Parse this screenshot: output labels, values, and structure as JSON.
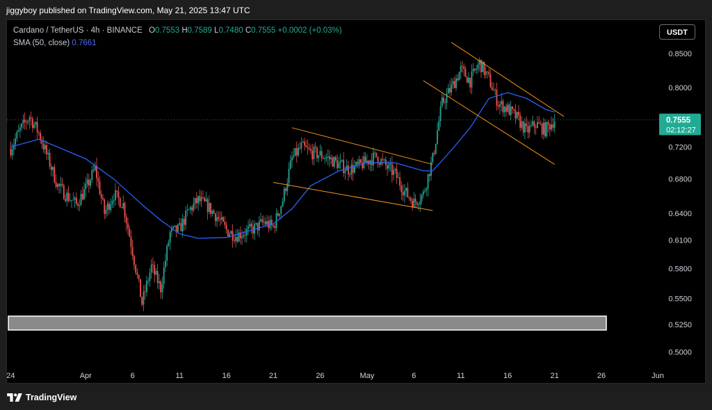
{
  "header": {
    "published_text": "jiggyboy published on TradingView.com, May 21, 2025 13:47 UTC"
  },
  "legend": {
    "symbol": "Cardano / TetherUS · 4h · BINANCE",
    "open_label": "O",
    "open": "0.7553",
    "high_label": "H",
    "high": "0.7589",
    "low_label": "L",
    "low": "0.7480",
    "close_label": "C",
    "close": "0.7555",
    "change": "+0.0002 (+0.03%)",
    "sma_label": "SMA (50, close)",
    "sma_value": "0.7661"
  },
  "toolbar": {
    "currency_button": "USDT"
  },
  "footer": {
    "brand": "TradingView"
  },
  "colors": {
    "up": "#26a69a",
    "down": "#ef5350",
    "sma": "#2962ff",
    "channel": "#f7931a",
    "price_tag": "#22ab94",
    "support_zone": "#8a8a8a"
  },
  "chart_data": {
    "type": "candlestick",
    "symbol": "Cardano / TetherUS",
    "interval": "4h",
    "exchange": "BINANCE",
    "y_scale": "log",
    "ylim": [
      0.49,
      0.88
    ],
    "y_ticks": [
      "0.8500",
      "0.8000",
      "0.7200",
      "0.6800",
      "0.6400",
      "0.6100",
      "0.5800",
      "0.5500",
      "0.5250",
      "0.5000"
    ],
    "x_range": [
      "2025-03-24",
      "2025-06-01"
    ],
    "x_ticks": [
      {
        "label": "24",
        "date": "2025-03-24"
      },
      {
        "label": "Apr",
        "date": "2025-04-01"
      },
      {
        "label": "6",
        "date": "2025-04-06"
      },
      {
        "label": "11",
        "date": "2025-04-11"
      },
      {
        "label": "16",
        "date": "2025-04-16"
      },
      {
        "label": "21",
        "date": "2025-04-21"
      },
      {
        "label": "26",
        "date": "2025-04-26"
      },
      {
        "label": "May",
        "date": "2025-05-01"
      },
      {
        "label": "6",
        "date": "2025-05-06"
      },
      {
        "label": "11",
        "date": "2025-05-11"
      },
      {
        "label": "16",
        "date": "2025-05-16"
      },
      {
        "label": "21",
        "date": "2025-05-21"
      },
      {
        "label": "26",
        "date": "2025-05-26"
      },
      {
        "label": "Jun",
        "date": "2025-06-01"
      }
    ],
    "price_path": [
      [
        "2025-03-24",
        0.718
      ],
      [
        "2025-03-25",
        0.742
      ],
      [
        "2025-03-26",
        0.76
      ],
      [
        "2025-03-27",
        0.738
      ],
      [
        "2025-03-28",
        0.705
      ],
      [
        "2025-03-29",
        0.672
      ],
      [
        "2025-03-30",
        0.66
      ],
      [
        "2025-03-31",
        0.65
      ],
      [
        "2025-04-01",
        0.668
      ],
      [
        "2025-04-02",
        0.693
      ],
      [
        "2025-04-03",
        0.64
      ],
      [
        "2025-04-04",
        0.662
      ],
      [
        "2025-04-05",
        0.65
      ],
      [
        "2025-04-06",
        0.598
      ],
      [
        "2025-04-07",
        0.545
      ],
      [
        "2025-04-08",
        0.582
      ],
      [
        "2025-04-09",
        0.56
      ],
      [
        "2025-04-10",
        0.618
      ],
      [
        "2025-04-11",
        0.622
      ],
      [
        "2025-04-12",
        0.643
      ],
      [
        "2025-04-13",
        0.655
      ],
      [
        "2025-04-14",
        0.648
      ],
      [
        "2025-04-15",
        0.636
      ],
      [
        "2025-04-16",
        0.621
      ],
      [
        "2025-04-17",
        0.615
      ],
      [
        "2025-04-18",
        0.619
      ],
      [
        "2025-04-19",
        0.623
      ],
      [
        "2025-04-20",
        0.63
      ],
      [
        "2025-04-21",
        0.624
      ],
      [
        "2025-04-22",
        0.655
      ],
      [
        "2025-04-23",
        0.705
      ],
      [
        "2025-04-24",
        0.72
      ],
      [
        "2025-04-25",
        0.713
      ],
      [
        "2025-04-26",
        0.71
      ],
      [
        "2025-04-27",
        0.705
      ],
      [
        "2025-04-28",
        0.698
      ],
      [
        "2025-04-29",
        0.692
      ],
      [
        "2025-04-30",
        0.695
      ],
      [
        "2025-05-01",
        0.702
      ],
      [
        "2025-05-02",
        0.708
      ],
      [
        "2025-05-03",
        0.696
      ],
      [
        "2025-05-04",
        0.686
      ],
      [
        "2025-05-05",
        0.665
      ],
      [
        "2025-05-06",
        0.652
      ],
      [
        "2025-05-07",
        0.662
      ],
      [
        "2025-05-08",
        0.705
      ],
      [
        "2025-05-09",
        0.778
      ],
      [
        "2025-05-10",
        0.8
      ],
      [
        "2025-05-11",
        0.826
      ],
      [
        "2025-05-12",
        0.81
      ],
      [
        "2025-05-13",
        0.836
      ],
      [
        "2025-05-14",
        0.812
      ],
      [
        "2025-05-15",
        0.778
      ],
      [
        "2025-05-16",
        0.77
      ],
      [
        "2025-05-17",
        0.758
      ],
      [
        "2025-05-18",
        0.74
      ],
      [
        "2025-05-19",
        0.75
      ],
      [
        "2025-05-20",
        0.742
      ],
      [
        "2025-05-21",
        0.7555
      ]
    ],
    "sma_50": [
      [
        "2025-03-24",
        0.72
      ],
      [
        "2025-03-27",
        0.73
      ],
      [
        "2025-04-01",
        0.705
      ],
      [
        "2025-04-04",
        0.68
      ],
      [
        "2025-04-07",
        0.65
      ],
      [
        "2025-04-09",
        0.632
      ],
      [
        "2025-04-11",
        0.617
      ],
      [
        "2025-04-13",
        0.612
      ],
      [
        "2025-04-16",
        0.613
      ],
      [
        "2025-04-19",
        0.622
      ],
      [
        "2025-04-21",
        0.628
      ],
      [
        "2025-04-23",
        0.645
      ],
      [
        "2025-04-25",
        0.672
      ],
      [
        "2025-04-28",
        0.69
      ],
      [
        "2025-05-01",
        0.7
      ],
      [
        "2025-05-04",
        0.7
      ],
      [
        "2025-05-07",
        0.69
      ],
      [
        "2025-05-08",
        0.69
      ],
      [
        "2025-05-10",
        0.716
      ],
      [
        "2025-05-12",
        0.745
      ],
      [
        "2025-05-14",
        0.785
      ],
      [
        "2025-05-16",
        0.793
      ],
      [
        "2025-05-18",
        0.785
      ],
      [
        "2025-05-20",
        0.77
      ],
      [
        "2025-05-21",
        0.7661
      ]
    ],
    "channels": [
      {
        "name": "april_channel_upper",
        "from": [
          "2025-04-23",
          0.745
        ],
        "to": [
          "2025-05-08",
          0.698
        ]
      },
      {
        "name": "april_channel_lower",
        "from": [
          "2025-04-21",
          0.676
        ],
        "to": [
          "2025-05-08",
          0.643
        ]
      },
      {
        "name": "may_channel_upper",
        "from": [
          "2025-05-10",
          0.867
        ],
        "to": [
          "2025-05-22",
          0.76
        ]
      },
      {
        "name": "may_channel_lower",
        "from": [
          "2025-05-07",
          0.81
        ],
        "to": [
          "2025-05-21",
          0.698
        ]
      }
    ],
    "support_zone": {
      "from": 0.52,
      "to": 0.533
    },
    "current_price": {
      "value": "0.7555",
      "countdown": "02:12:27"
    }
  }
}
